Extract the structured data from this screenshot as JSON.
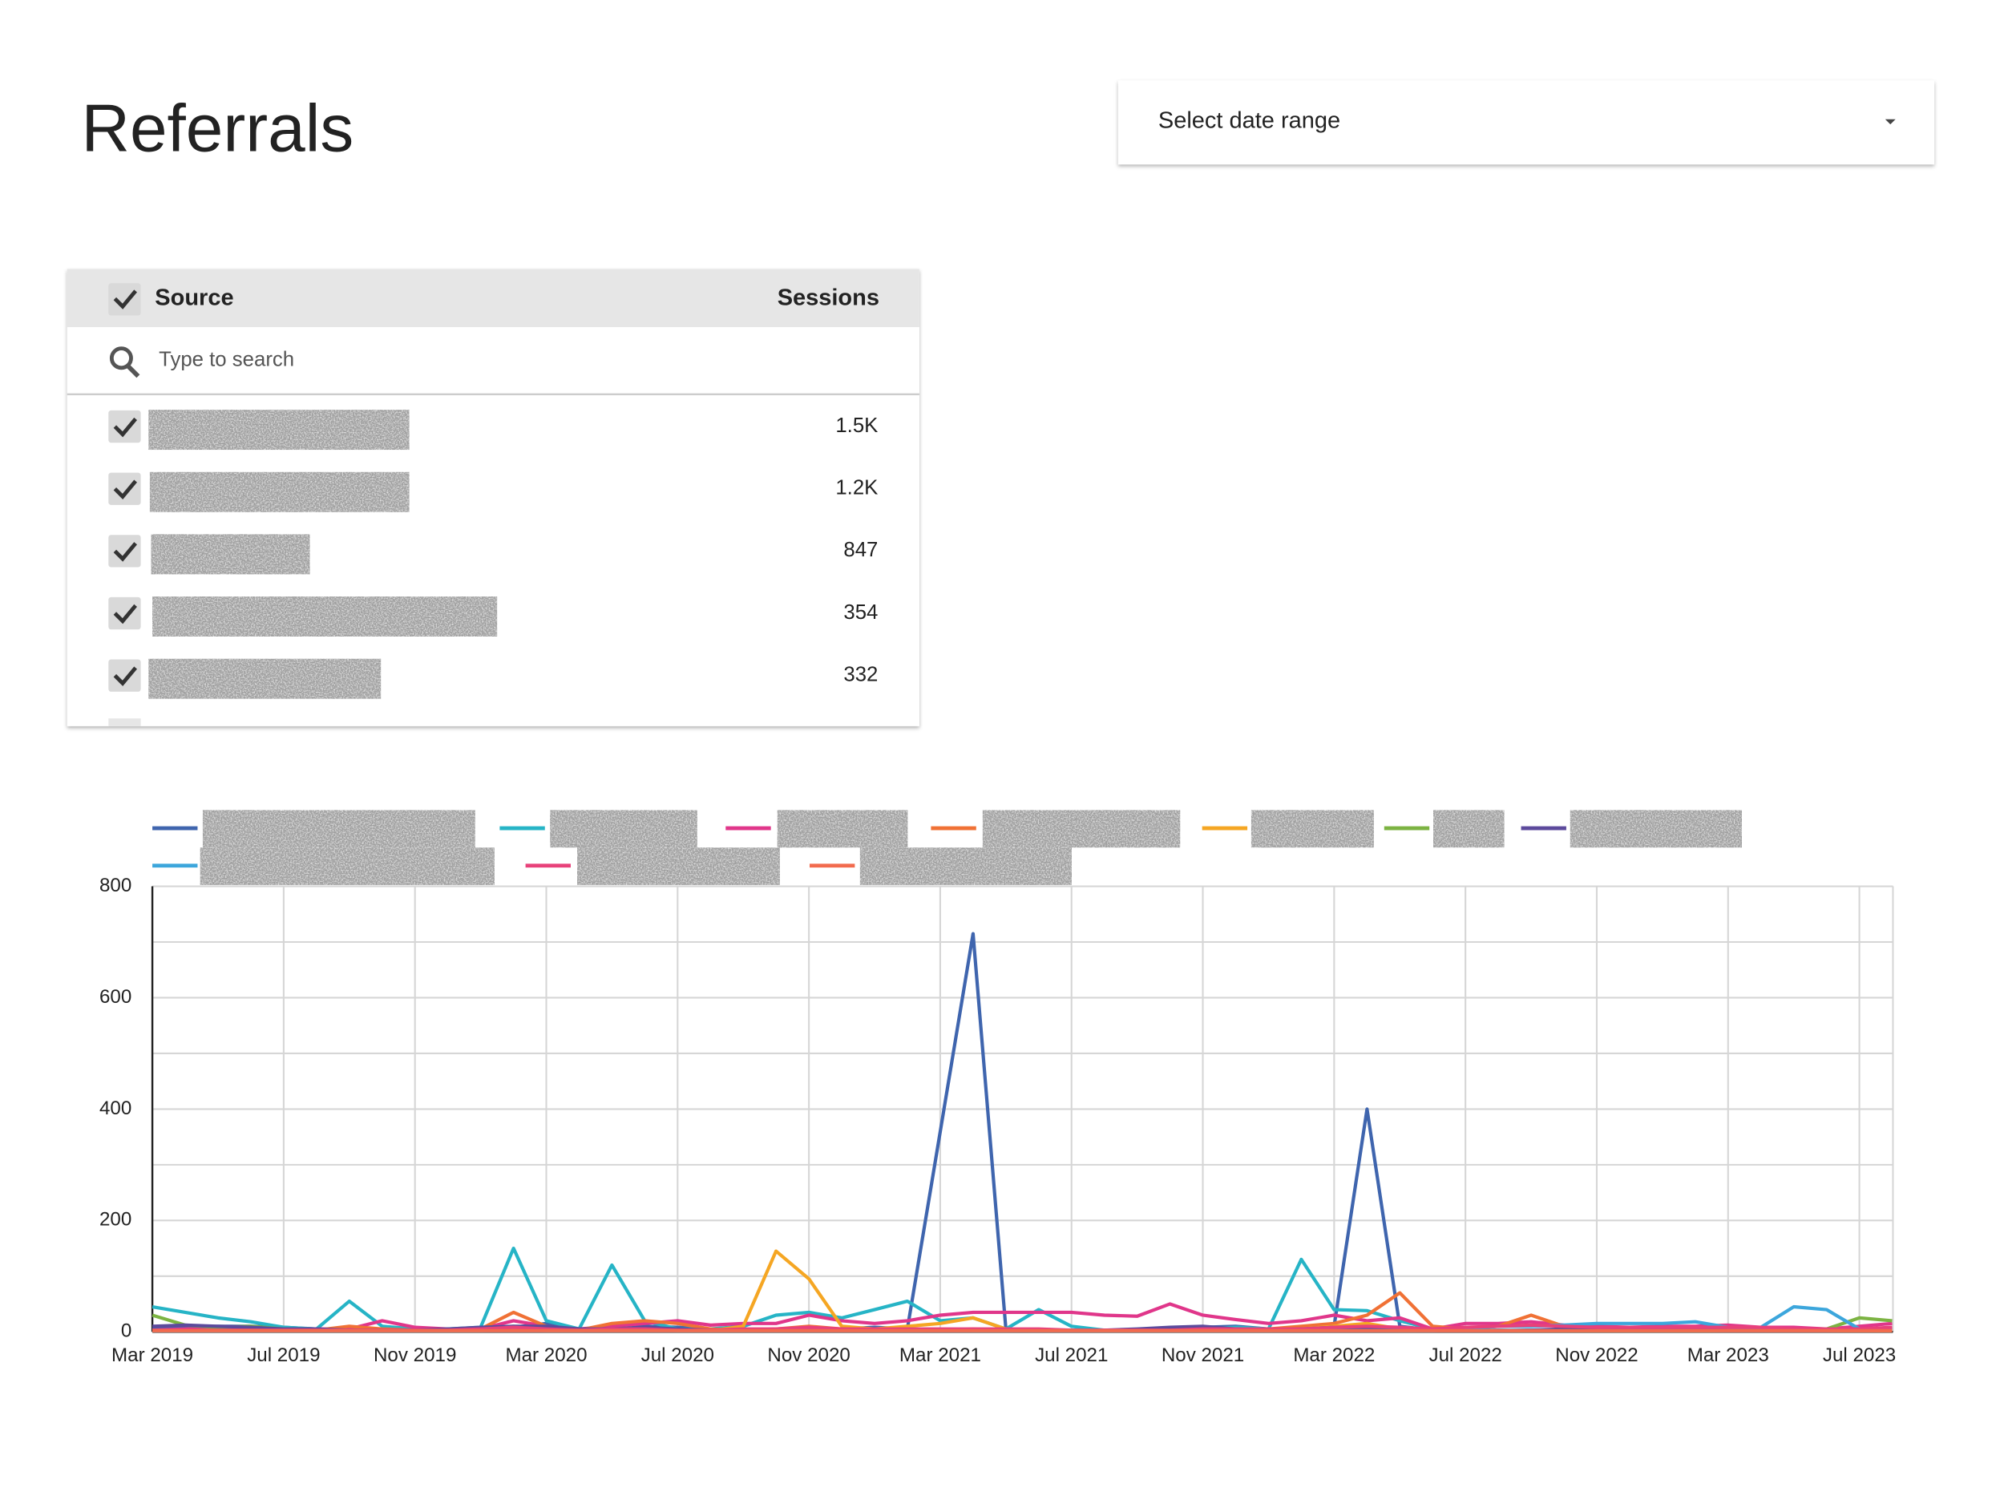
{
  "header": {
    "title": "Referrals"
  },
  "date_picker": {
    "label": "Select date range"
  },
  "table": {
    "columns": [
      "Source",
      "Sessions"
    ],
    "search_placeholder": "Type to search",
    "rows": [
      {
        "sessions": "1.5K"
      },
      {
        "sessions": "1.2K"
      },
      {
        "sessions": "847"
      },
      {
        "sessions": "354"
      },
      {
        "sessions": "332"
      }
    ]
  },
  "chart_data": {
    "type": "line",
    "categories": [
      "Mar 2019",
      null,
      null,
      null,
      "Jul 2019",
      null,
      null,
      null,
      "Nov 2019",
      null,
      null,
      null,
      "Mar 2020",
      null,
      null,
      null,
      "Jul 2020",
      null,
      null,
      null,
      "Nov 2020",
      null,
      null,
      null,
      "Mar 2021",
      null,
      null,
      null,
      "Jul 2021",
      null,
      null,
      null,
      "Nov 2021",
      null,
      null,
      null,
      "Mar 2022",
      null,
      null,
      null,
      "Jul 2022",
      null,
      null,
      null,
      "Nov 2022",
      null,
      null,
      null,
      "Mar 2023",
      null,
      null,
      null,
      "Jul 2023",
      null
    ],
    "ylim": [
      0,
      800
    ],
    "yticks": [
      0,
      200,
      400,
      600,
      800
    ],
    "y_minor_ticks": [
      100,
      300,
      500,
      700
    ],
    "grid": true,
    "series": [
      {
        "color": "#3f65ae",
        "values": [
          5,
          8,
          10,
          10,
          8,
          5,
          3,
          2,
          3,
          5,
          5,
          8,
          15,
          5,
          3,
          10,
          8,
          5,
          3,
          2,
          3,
          5,
          8,
          5,
          360,
          715,
          5,
          3,
          2,
          2,
          3,
          5,
          8,
          10,
          5,
          3,
          10,
          400,
          10,
          3,
          2,
          3,
          2,
          2,
          3,
          2,
          2,
          3,
          2,
          2,
          3,
          2,
          5,
          5
        ]
      },
      {
        "color": "#26b4c6",
        "values": [
          45,
          35,
          25,
          18,
          8,
          5,
          55,
          10,
          5,
          5,
          8,
          150,
          20,
          5,
          120,
          20,
          5,
          5,
          10,
          30,
          35,
          25,
          40,
          55,
          20,
          25,
          5,
          40,
          10,
          3,
          2,
          3,
          5,
          8,
          5,
          130,
          40,
          38,
          20,
          5,
          3,
          2,
          3,
          2,
          3,
          2,
          3,
          2,
          3,
          2,
          3,
          2,
          3,
          2
        ]
      },
      {
        "color": "#e0368a",
        "values": [
          3,
          5,
          5,
          8,
          5,
          5,
          5,
          20,
          8,
          5,
          5,
          20,
          10,
          5,
          10,
          15,
          20,
          12,
          15,
          15,
          30,
          20,
          15,
          20,
          30,
          35,
          35,
          35,
          35,
          30,
          28,
          50,
          30,
          22,
          15,
          20,
          30,
          20,
          25,
          5,
          15,
          15,
          18,
          12,
          10,
          8,
          10,
          10,
          12,
          8,
          8,
          5,
          10,
          15
        ]
      },
      {
        "color": "#f07135",
        "values": [
          2,
          2,
          2,
          2,
          5,
          3,
          10,
          5,
          3,
          2,
          5,
          35,
          10,
          3,
          15,
          20,
          15,
          5,
          3,
          5,
          10,
          5,
          3,
          5,
          3,
          5,
          3,
          2,
          3,
          2,
          2,
          3,
          5,
          3,
          5,
          10,
          15,
          30,
          70,
          10,
          5,
          10,
          30,
          10,
          5,
          3,
          3,
          2,
          3,
          2,
          2,
          2,
          3,
          2
        ]
      },
      {
        "color": "#f5a623",
        "values": [
          2,
          2,
          2,
          2,
          2,
          2,
          2,
          2,
          2,
          2,
          2,
          5,
          2,
          2,
          5,
          5,
          2,
          2,
          10,
          145,
          95,
          10,
          5,
          10,
          15,
          25,
          5,
          2,
          2,
          2,
          2,
          2,
          2,
          2,
          2,
          5,
          10,
          15,
          5,
          2,
          2,
          2,
          2,
          2,
          2,
          2,
          2,
          2,
          2,
          2,
          2,
          2,
          2,
          2
        ]
      },
      {
        "color": "#7cb342",
        "values": [
          30,
          12,
          8,
          10,
          5,
          3,
          2,
          2,
          2,
          3,
          5,
          10,
          3,
          2,
          5,
          5,
          3,
          2,
          2,
          3,
          5,
          3,
          2,
          2,
          3,
          2,
          2,
          3,
          2,
          2,
          2,
          2,
          3,
          2,
          2,
          3,
          5,
          3,
          2,
          2,
          2,
          2,
          2,
          2,
          2,
          2,
          2,
          2,
          2,
          2,
          3,
          5,
          25,
          20
        ]
      },
      {
        "color": "#5c4a9c",
        "values": [
          10,
          12,
          10,
          8,
          5,
          5,
          3,
          3,
          3,
          5,
          8,
          10,
          10,
          5,
          5,
          8,
          5,
          3,
          3,
          3,
          5,
          5,
          3,
          3,
          3,
          3,
          3,
          2,
          2,
          3,
          5,
          8,
          10,
          5,
          3,
          5,
          8,
          5,
          3,
          2,
          2,
          2,
          3,
          5,
          5,
          3,
          3,
          3,
          2,
          2,
          2,
          2,
          3,
          3
        ]
      },
      {
        "color": "#3ca6dc",
        "values": [
          2,
          2,
          2,
          2,
          2,
          2,
          2,
          2,
          2,
          2,
          2,
          2,
          2,
          2,
          2,
          2,
          2,
          2,
          2,
          2,
          2,
          2,
          2,
          2,
          2,
          2,
          2,
          2,
          2,
          2,
          2,
          2,
          2,
          2,
          2,
          2,
          2,
          2,
          2,
          2,
          5,
          10,
          10,
          12,
          15,
          15,
          15,
          18,
          8,
          8,
          45,
          40,
          5,
          5
        ]
      },
      {
        "color": "#e8417a",
        "values": [
          3,
          3,
          3,
          3,
          3,
          3,
          3,
          3,
          3,
          3,
          5,
          8,
          5,
          3,
          5,
          5,
          3,
          3,
          5,
          5,
          8,
          5,
          5,
          5,
          5,
          5,
          5,
          5,
          3,
          3,
          3,
          3,
          5,
          5,
          5,
          5,
          8,
          10,
          8,
          5,
          8,
          10,
          12,
          10,
          8,
          8,
          8,
          8,
          8,
          8,
          5,
          5,
          5,
          8
        ]
      },
      {
        "color": "#f26b4e",
        "values": [
          2,
          2,
          2,
          2,
          2,
          2,
          2,
          2,
          2,
          2,
          2,
          2,
          2,
          2,
          2,
          2,
          2,
          2,
          2,
          2,
          2,
          2,
          2,
          2,
          2,
          2,
          2,
          2,
          2,
          2,
          2,
          2,
          2,
          2,
          2,
          2,
          2,
          2,
          2,
          2,
          2,
          2,
          2,
          2,
          2,
          2,
          2,
          2,
          2,
          2,
          2,
          2,
          2,
          2
        ]
      }
    ]
  }
}
